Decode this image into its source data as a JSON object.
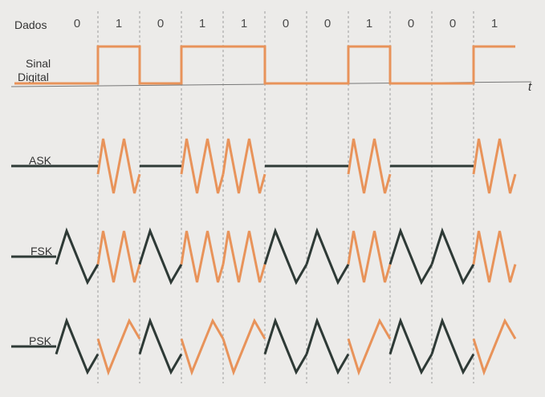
{
  "labels": {
    "data": "Dados",
    "digital_line1": "Sinal",
    "digital_line2": "Digital",
    "time": "t",
    "ask": "ASK",
    "fsk": "FSK",
    "psk": "PSK"
  },
  "bits": [
    "0",
    "1",
    "0",
    "1",
    "1",
    "0",
    "0",
    "1",
    "0",
    "0",
    "1"
  ],
  "colors": {
    "one": "#e8935a",
    "zero": "#2e3a36",
    "grid": "#8a8a8a",
    "baseline": "#777777",
    "background": "#ecebe9"
  }
}
